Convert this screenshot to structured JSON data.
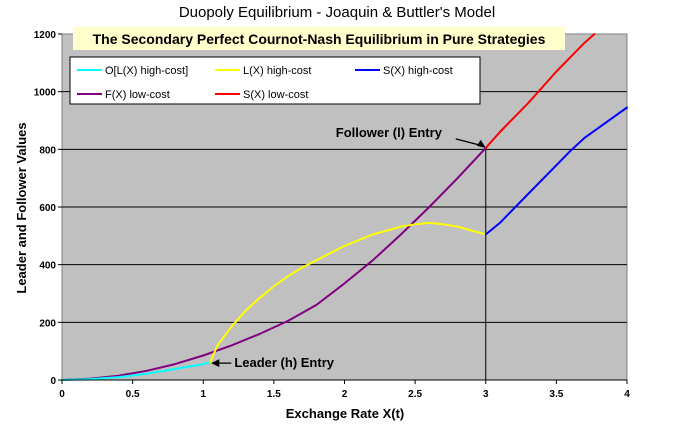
{
  "chart_data": {
    "type": "line",
    "title": "Duopoly Equilibrium  -  Joaquin & Buttler's Model",
    "subtitle": "The Secondary Perfect Cournot-Nash Equilibrium in Pure Strategies",
    "xlabel": "Exchange Rate X(t)",
    "ylabel": "Leader and Follower Values",
    "xlim": [
      0,
      4
    ],
    "ylim": [
      0,
      1200
    ],
    "x_ticks": [
      "0",
      "0.5",
      "1",
      "1.5",
      "2",
      "2.5",
      "3",
      "3.5",
      "4"
    ],
    "y_ticks": [
      "0",
      "200",
      "400",
      "600",
      "800",
      "1000",
      "1200"
    ],
    "grid": "horizontal",
    "legend_position": "top-left",
    "series": [
      {
        "name": "O[L(X) high-cost]",
        "color": "#00FFFF",
        "x": [
          0,
          0.2,
          0.4,
          0.6,
          0.8,
          1.0,
          1.05
        ],
        "y": [
          0,
          3,
          10,
          22,
          38,
          55,
          62
        ]
      },
      {
        "name": "L(X) high-cost",
        "color": "#FFFF00",
        "x": [
          1.05,
          1.1,
          1.2,
          1.3,
          1.4,
          1.5,
          1.6,
          1.7,
          1.8,
          1.9,
          2.0,
          2.1,
          2.2,
          2.3,
          2.4,
          2.5,
          2.6,
          2.7,
          2.8,
          2.9,
          3.0
        ],
        "y": [
          62,
          120,
          185,
          240,
          285,
          325,
          360,
          390,
          415,
          440,
          465,
          485,
          505,
          518,
          532,
          540,
          545,
          540,
          532,
          518,
          505
        ]
      },
      {
        "name": "S(X) high-cost",
        "color": "#0000FF",
        "x": [
          3.0,
          3.1,
          3.2,
          3.3,
          3.4,
          3.5,
          3.6,
          3.7,
          3.8,
          3.9,
          4.0
        ],
        "y": [
          505,
          545,
          595,
          645,
          695,
          745,
          795,
          840,
          875,
          910,
          945
        ]
      },
      {
        "name": "F(X) low-cost",
        "color": "#800080",
        "x": [
          0,
          0.2,
          0.4,
          0.6,
          0.8,
          1.0,
          1.2,
          1.4,
          1.6,
          1.8,
          2.0,
          2.2,
          2.4,
          2.6,
          2.8,
          3.0
        ],
        "y": [
          0,
          5,
          15,
          32,
          55,
          85,
          120,
          160,
          205,
          260,
          335,
          415,
          505,
          600,
          700,
          805
        ]
      },
      {
        "name": "S(X) low-cost",
        "color": "#FF0000",
        "x": [
          3.0,
          3.1,
          3.2,
          3.3,
          3.4,
          3.5,
          3.6,
          3.7,
          3.77
        ],
        "y": [
          805,
          860,
          910,
          960,
          1015,
          1070,
          1120,
          1170,
          1200
        ]
      }
    ],
    "annotations": [
      {
        "text": "Follower (l) Entry",
        "x": 3.0,
        "y": 805
      },
      {
        "text": "Leader (h) Entry",
        "x": 1.05,
        "y": 62
      }
    ]
  }
}
